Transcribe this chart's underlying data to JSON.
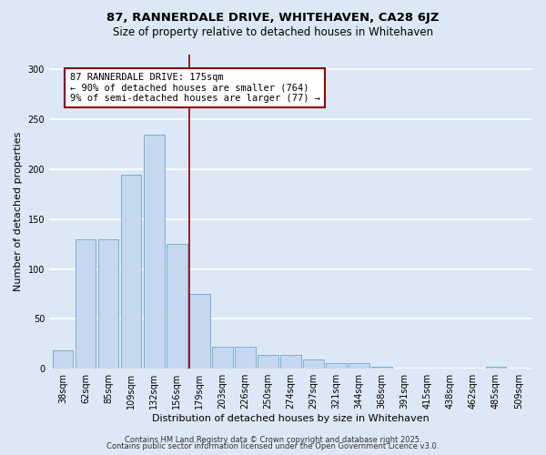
{
  "title1": "87, RANNERDALE DRIVE, WHITEHAVEN, CA28 6JZ",
  "title2": "Size of property relative to detached houses in Whitehaven",
  "xlabel": "Distribution of detached houses by size in Whitehaven",
  "ylabel": "Number of detached properties",
  "categories": [
    "38sqm",
    "62sqm",
    "85sqm",
    "109sqm",
    "132sqm",
    "156sqm",
    "179sqm",
    "203sqm",
    "226sqm",
    "250sqm",
    "274sqm",
    "297sqm",
    "321sqm",
    "344sqm",
    "368sqm",
    "391sqm",
    "415sqm",
    "438sqm",
    "462sqm",
    "485sqm",
    "509sqm"
  ],
  "values": [
    18,
    130,
    130,
    195,
    235,
    125,
    75,
    22,
    22,
    14,
    14,
    9,
    6,
    6,
    2,
    0,
    0,
    0,
    0,
    2,
    0
  ],
  "bar_color": "#c5d8f0",
  "bar_edge_color": "#7bafd4",
  "vline_x_index": 6,
  "vline_color": "#8b0000",
  "annotation_text": "87 RANNERDALE DRIVE: 175sqm\n← 90% of detached houses are smaller (764)\n9% of semi-detached houses are larger (77) →",
  "annotation_box_color": "#ffffff",
  "annotation_box_edge_color": "#8b0000",
  "annotation_fontsize": 7.5,
  "footer1": "Contains HM Land Registry data © Crown copyright and database right 2025.",
  "footer2": "Contains public sector information licensed under the Open Government Licence v3.0.",
  "title1_fontsize": 9.5,
  "title2_fontsize": 8.5,
  "xlabel_fontsize": 8,
  "ylabel_fontsize": 8,
  "tick_fontsize": 7,
  "footer_fontsize": 6,
  "ylim": [
    0,
    315
  ],
  "bg_color": "#dce8f5",
  "plot_bg_color": "#dce8f5",
  "grid_color": "#ffffff",
  "figsize": [
    6.0,
    5.0
  ],
  "dpi": 100
}
